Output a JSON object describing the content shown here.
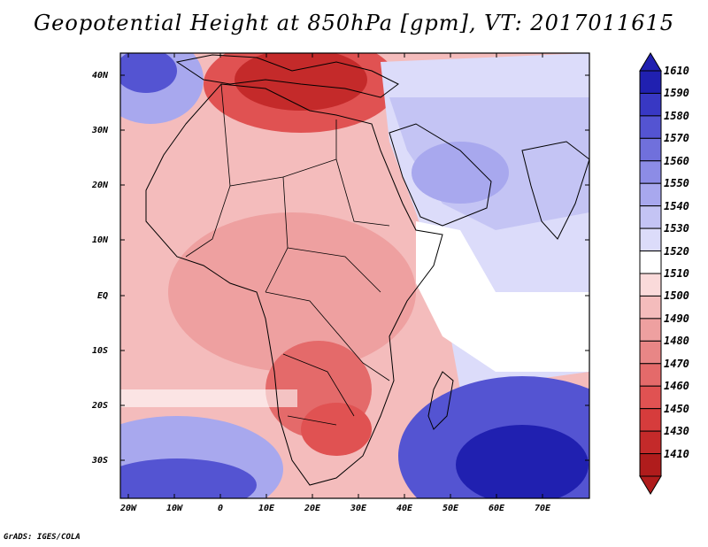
{
  "title": "Geopotential Height at 850hPa [gpm], VT: 2017011615",
  "credit": "GrADS: IGES/COLA",
  "map": {
    "variable": "Geopotential Height at 850hPa",
    "units": "gpm",
    "valid_time": "2017011615",
    "lat_labels": [
      "40N",
      "30N",
      "20N",
      "10N",
      "EQ",
      "10S",
      "20S",
      "30S"
    ],
    "lon_labels": [
      "20W",
      "10W",
      "0",
      "10E",
      "20E",
      "30E",
      "40E",
      "50E",
      "60E",
      "70E"
    ],
    "lat_range": [
      -37,
      45
    ],
    "lon_range": [
      -23,
      80
    ]
  },
  "colorbar": {
    "levels": [
      "1410",
      "1430",
      "1450",
      "1460",
      "1470",
      "1480",
      "1490",
      "1500",
      "1510",
      "1520",
      "1530",
      "1540",
      "1550",
      "1560",
      "1570",
      "1580",
      "1590",
      "1610"
    ],
    "colors": [
      "#b01c1c",
      "#c42a2a",
      "#d63c3c",
      "#e05252",
      "#e46a6a",
      "#e88686",
      "#eea0a0",
      "#f4bcbc",
      "#fadada",
      "#ffffff",
      "#dcdcfa",
      "#c4c4f4",
      "#a8a8ee",
      "#8c8ce6",
      "#7070dc",
      "#5454d2",
      "#3838c4",
      "#2020b0"
    ]
  }
}
